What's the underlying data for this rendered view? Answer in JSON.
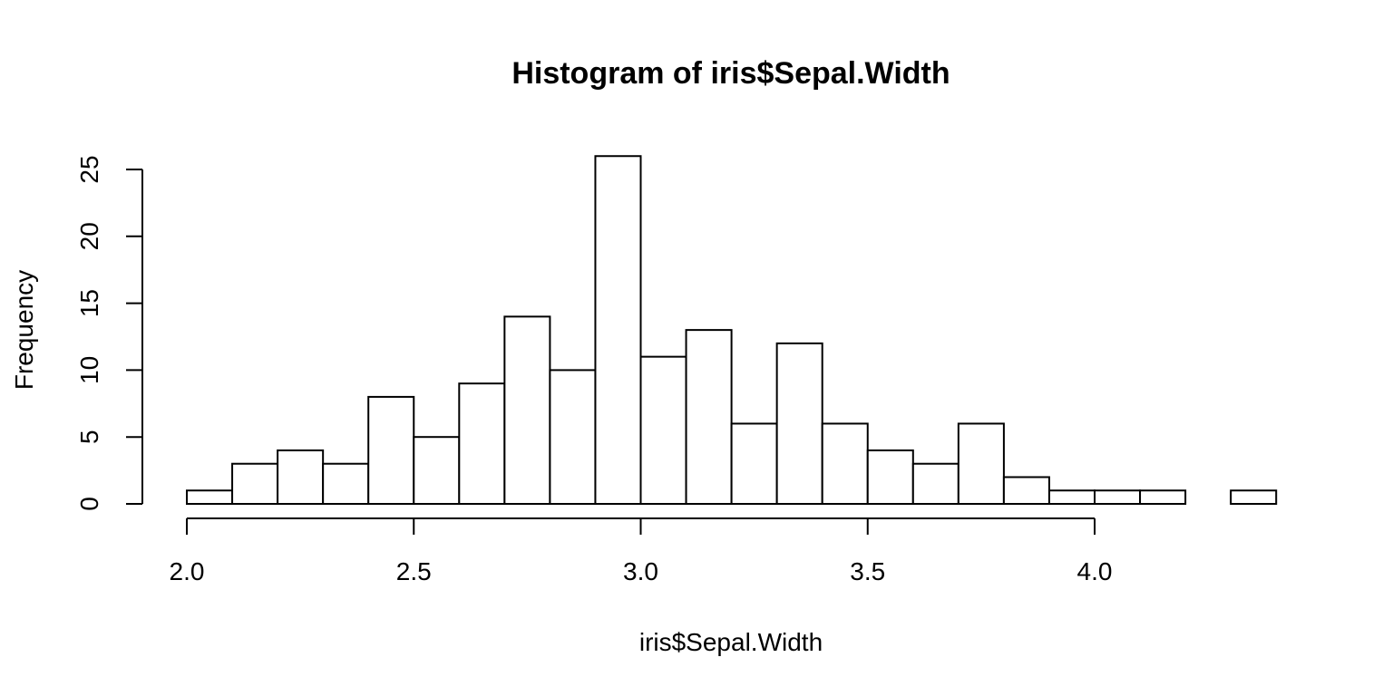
{
  "chart_data": {
    "type": "bar",
    "title": "Histogram of iris$Sepal.Width",
    "xlabel": "iris$Sepal.Width",
    "ylabel": "Frequency",
    "bin_edges": [
      2.0,
      2.1,
      2.2,
      2.3,
      2.4,
      2.5,
      2.6,
      2.7,
      2.8,
      2.9,
      3.0,
      3.1,
      3.2,
      3.3,
      3.4,
      3.5,
      3.6,
      3.7,
      3.8,
      3.9,
      4.0,
      4.1,
      4.2,
      4.3,
      4.4
    ],
    "values": [
      1,
      3,
      4,
      3,
      8,
      5,
      9,
      14,
      10,
      26,
      11,
      13,
      6,
      12,
      6,
      4,
      3,
      6,
      2,
      1,
      1,
      1,
      0,
      1
    ],
    "xlim": [
      2.0,
      4.4
    ],
    "ylim": [
      0,
      26
    ],
    "x_ticks": [
      "2.0",
      "2.5",
      "3.0",
      "3.5",
      "4.0"
    ],
    "y_ticks": [
      "0",
      "5",
      "10",
      "15",
      "20",
      "25"
    ],
    "grid": false,
    "legend": "none",
    "colors": {
      "bar_fill": "#ffffff",
      "bar_stroke": "#000000"
    }
  }
}
